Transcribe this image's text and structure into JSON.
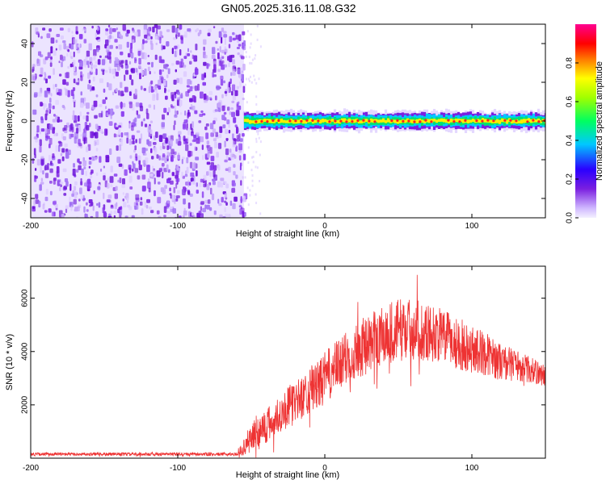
{
  "title": "GN05.2025.316.11.08.G32",
  "colors": {
    "snr_line": "#ee3333",
    "spectrogram_noise": "#7a1fe0",
    "axis": "#000000"
  },
  "chart_data": [
    {
      "type": "heatmap",
      "title": "GN05.2025.316.11.08.G32",
      "xlabel": "Height of straight line (km)",
      "ylabel": "Frequency (Hz)",
      "xlim": [
        -200,
        150
      ],
      "ylim": [
        -50,
        50
      ],
      "xticks": [
        -200,
        -100,
        0,
        100
      ],
      "xtick_labels": [
        "-200",
        "-100",
        "0",
        "100"
      ],
      "yticks": [
        -40,
        -20,
        0,
        20,
        40
      ],
      "ytick_labels": [
        "-40",
        "-20",
        "0",
        "20",
        "40"
      ],
      "noise_region_x": [
        -200,
        -55
      ],
      "signal_x": [
        -55,
        150
      ],
      "signal_frequency_hz": 0,
      "signal_band_hz": [
        -3,
        3
      ],
      "colorbar": {
        "label": "Normalized spectral amplitude",
        "range": [
          0.0,
          1.0
        ],
        "ticks": [
          0.0,
          0.2,
          0.4,
          0.6,
          0.8
        ],
        "tick_labels": [
          "0.0",
          "0.2",
          "0.4",
          "0.6",
          "0.8"
        ]
      }
    },
    {
      "type": "line",
      "xlabel": "Height of straight line (km)",
      "ylabel": "SNR (10 * v/v)",
      "xlim": [
        -200,
        150
      ],
      "ylim": [
        0,
        7200
      ],
      "xticks": [
        -200,
        -100,
        0,
        100
      ],
      "xtick_labels": [
        "-200",
        "-100",
        "0",
        "100"
      ],
      "yticks": [
        2000,
        4000,
        6000
      ],
      "ytick_labels": [
        "2000",
        "4000",
        "6000"
      ],
      "series": [
        {
          "name": "SNR",
          "x": [
            -200,
            -150,
            -100,
            -60,
            -55,
            -50,
            -45,
            -40,
            -35,
            -30,
            -25,
            -20,
            -15,
            -10,
            -5,
            0,
            10,
            20,
            30,
            40,
            50,
            60,
            70,
            80,
            90,
            100,
            110,
            120,
            130,
            140,
            150
          ],
          "mean": [
            150,
            150,
            150,
            150,
            400,
            800,
            1000,
            1200,
            1400,
            1700,
            1900,
            2100,
            2300,
            2600,
            2700,
            3000,
            3500,
            4000,
            4300,
            4600,
            4800,
            4900,
            4700,
            4600,
            4300,
            4100,
            3900,
            3600,
            3500,
            3300,
            3100
          ],
          "spread": [
            60,
            60,
            60,
            60,
            300,
            600,
            700,
            700,
            700,
            700,
            800,
            800,
            800,
            900,
            900,
            1000,
            1000,
            1100,
            1100,
            1200,
            1200,
            1100,
            1100,
            1000,
            1000,
            900,
            800,
            700,
            600,
            500,
            400
          ]
        }
      ]
    }
  ]
}
